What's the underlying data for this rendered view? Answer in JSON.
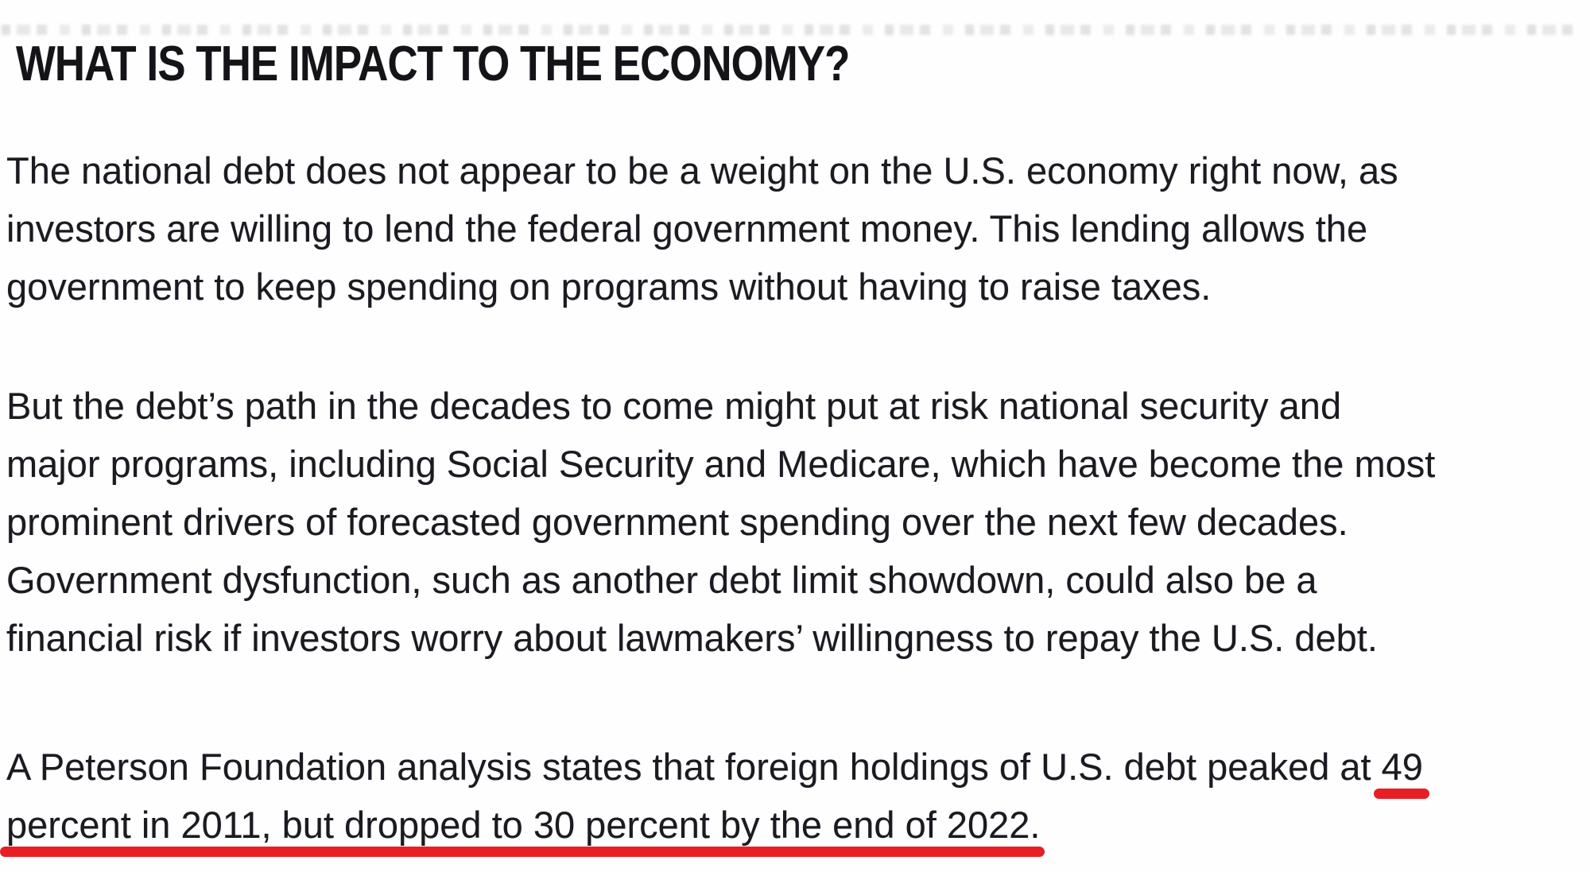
{
  "colors": {
    "background": "#fefefe",
    "heading_text": "#131318",
    "body_text": "#1a1a21",
    "marker_red": "#e91e25"
  },
  "article": {
    "heading": "WHAT IS THE IMPACT TO THE ECONOMY?",
    "paragraph1": {
      "lines": [
        "The national debt does not appear to be a weight on the U.S. economy right now, as",
        "investors are willing to lend the federal government money. This lending allows the",
        "government to keep spending on programs without having to raise taxes."
      ]
    },
    "paragraph2": {
      "lines": [
        "But the debt’s path in the decades to come might put at risk national security and",
        "major programs, including Social Security and Medicare, which have become the most",
        "prominent drivers of forecasted government spending over the next few decades.",
        "Government dysfunction, such as another debt limit showdown, could also be a",
        "financial risk if investors worry about lawmakers’ willingness to repay the U.S. debt."
      ]
    },
    "paragraph3": {
      "line1_text": "A Peterson Foundation analysis states that foreign holdings of U.S. debt peaked at ",
      "line1_marked": "49",
      "line2_marked": "percent in 2011, but dropped to 30 percent by the end of 2022."
    }
  }
}
